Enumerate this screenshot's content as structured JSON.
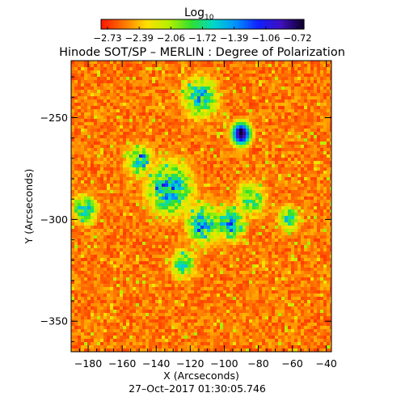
{
  "colorbar": {
    "label": "Log",
    "label_subscript": "10",
    "ticks": [
      "−2.73",
      "−2.39",
      "−2.06",
      "−1.72",
      "−1.39",
      "−1.06",
      "−0.72"
    ],
    "range": [
      -2.73,
      -0.72
    ],
    "colormap": [
      "#ff1a00",
      "#ff7800",
      "#ffe000",
      "#b4f000",
      "#30e030",
      "#00d8c8",
      "#0090ff",
      "#1020ff",
      "#4010c0",
      "#100030"
    ]
  },
  "chart_data": {
    "type": "heatmap",
    "title": "Hinode SOT/SP – MERLIN : Degree of Polarization",
    "xlabel": "X (Arcseconds)",
    "ylabel": "Y (Arcseconds)",
    "xlim": [
      -190,
      -37
    ],
    "ylim": [
      -365,
      -222
    ],
    "xticks": [
      -180,
      -160,
      -140,
      -120,
      -100,
      -80,
      -60,
      -40
    ],
    "xtick_labels": [
      "−180",
      "−160",
      "−140",
      "−120",
      "−100",
      "−80",
      "−60",
      "−40"
    ],
    "yticks": [
      -250,
      -300,
      -350
    ],
    "ytick_labels": [
      "−250",
      "−300",
      "−350"
    ],
    "value_scale": "log10",
    "value_range": [
      -2.73,
      -0.72
    ],
    "footer": "27–Oct–2017 01:30:05.746",
    "features": [
      {
        "kind": "spot",
        "x": -90,
        "y": -258,
        "r": 6,
        "peak": -0.72
      },
      {
        "kind": "plage",
        "x": -132,
        "y": -285,
        "r": 14,
        "peak": -1.3
      },
      {
        "kind": "plage",
        "x": -112,
        "y": -302,
        "r": 11,
        "peak": -1.35
      },
      {
        "kind": "plage",
        "x": -97,
        "y": -302,
        "r": 9,
        "peak": -1.25
      },
      {
        "kind": "plage",
        "x": -114,
        "y": -240,
        "r": 11,
        "peak": -1.45
      },
      {
        "kind": "plage",
        "x": -150,
        "y": -271,
        "r": 9,
        "peak": -1.6
      },
      {
        "kind": "plage",
        "x": -182,
        "y": -295,
        "r": 8,
        "peak": -1.5
      },
      {
        "kind": "plage",
        "x": -62,
        "y": -300,
        "r": 7,
        "peak": -1.55
      },
      {
        "kind": "plage",
        "x": -124,
        "y": -322,
        "r": 8,
        "peak": -1.6
      },
      {
        "kind": "plage",
        "x": -84,
        "y": -290,
        "r": 10,
        "peak": -1.7
      }
    ]
  }
}
